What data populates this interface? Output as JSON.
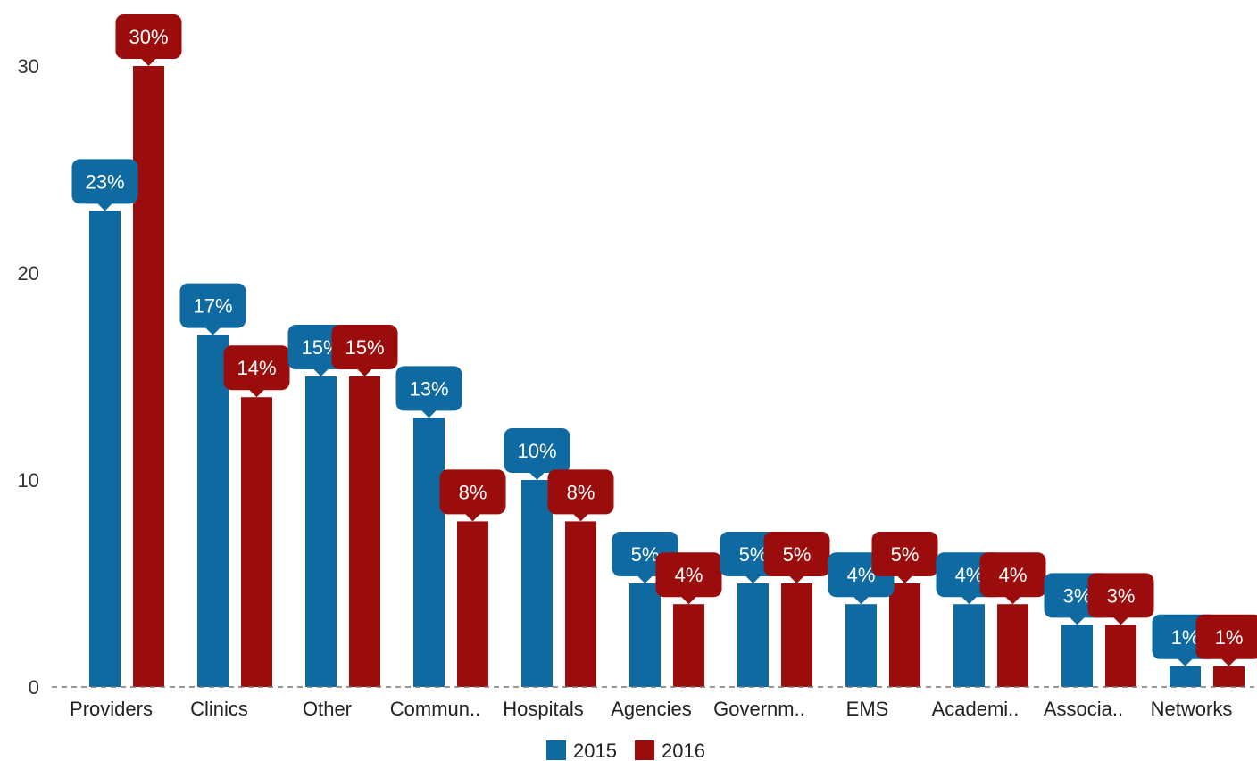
{
  "chart_data": {
    "type": "bar",
    "categories": [
      "Providers",
      "Clinics",
      "Other",
      "Commun..",
      "Hospitals",
      "Agencies",
      "Governm..",
      "EMS",
      "Academi..",
      "Associa..",
      "Networks"
    ],
    "series": [
      {
        "name": "2015",
        "color": "#0f6aa1",
        "values": [
          23,
          17,
          15,
          13,
          10,
          5,
          5,
          4,
          4,
          3,
          1
        ],
        "labels": [
          "23%",
          "17%",
          "15%",
          "13%",
          "10%",
          "5%",
          "5%",
          "4%",
          "4%",
          "3%",
          "1%"
        ]
      },
      {
        "name": "2016",
        "color": "#9b0d0d",
        "values": [
          30,
          14,
          15,
          8,
          8,
          4,
          5,
          5,
          4,
          3,
          1
        ],
        "labels": [
          "30%",
          "14%",
          "15%",
          "8%",
          "8%",
          "4%",
          "5%",
          "5%",
          "4%",
          "3%",
          "1%"
        ]
      }
    ],
    "yticks": [
      0,
      10,
      20,
      30
    ],
    "ylim": [
      0,
      32
    ],
    "grid": false,
    "baseline": "dashed",
    "legend": "bottom-center"
  }
}
